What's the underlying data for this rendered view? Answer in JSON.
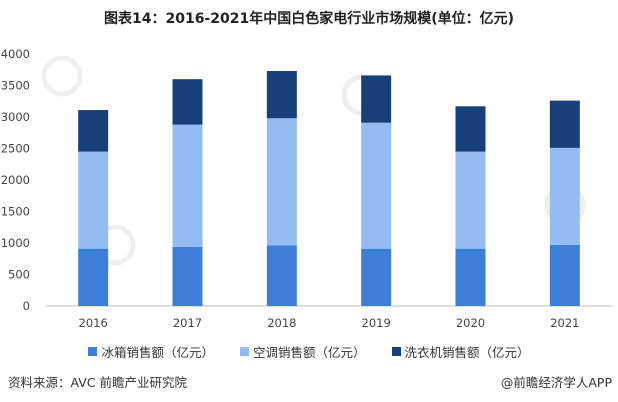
{
  "title": "图表14：2016-2021年中国白色家电行业市场规模(单位：亿元)",
  "source": "资料来源：AVC 前瞻产业研究院",
  "brand": "@前瞻经济学人APP",
  "chart_data": {
    "type": "bar",
    "stacked": true,
    "categories": [
      "2016",
      "2017",
      "2018",
      "2019",
      "2020",
      "2021"
    ],
    "series": [
      {
        "name": "冰箱销售额（亿元）",
        "color": "#3d7fd8",
        "values": [
          910,
          940,
          960,
          910,
          910,
          970
        ]
      },
      {
        "name": "空调销售额（亿元）",
        "color": "#93bcf3",
        "values": [
          1540,
          1940,
          2020,
          2000,
          1540,
          1540
        ]
      },
      {
        "name": "洗衣机销售额（亿元）",
        "color": "#173f7a",
        "values": [
          660,
          720,
          750,
          750,
          720,
          750
        ]
      }
    ],
    "ylim": [
      0,
      4000
    ],
    "yticks": [
      0,
      500,
      1000,
      1500,
      2000,
      2500,
      3000,
      3500,
      4000
    ],
    "grid": false,
    "legend_position": "bottom"
  }
}
